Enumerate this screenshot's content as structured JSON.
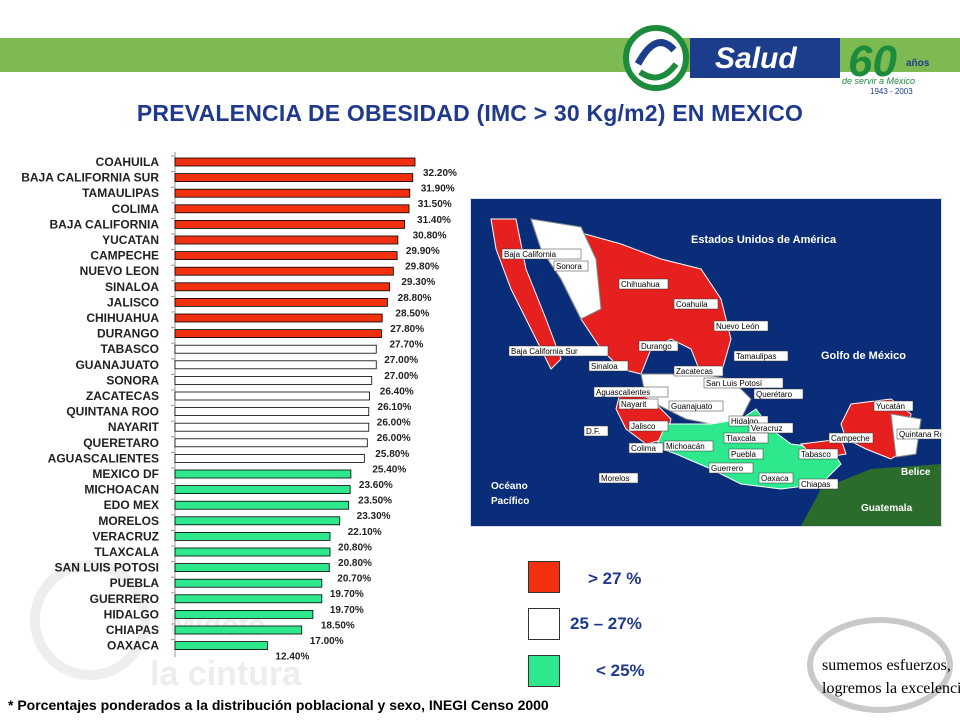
{
  "header": {
    "logo_word": "Salud",
    "logo_years": "60",
    "logo_anos": "años",
    "logo_tagline": "de servir a México",
    "logo_range": "1943 - 2003"
  },
  "title": "PREVALENCIA DE OBESIDAD (IMC > 30 Kg/m2) EN MEXICO",
  "colors": {
    "high": "#f0300e",
    "mid": "#ffffff",
    "low": "#2ee88e",
    "title": "#1f3a8c",
    "topbar": "#7dbb52",
    "ocean": "#0a2d7a"
  },
  "chart_data": {
    "type": "bar",
    "orientation": "horizontal",
    "categories": [
      "COAHUILA",
      "BAJA CALIFORNIA SUR",
      "TAMAULIPAS",
      "COLIMA",
      "BAJA CALIFORNIA",
      "YUCATAN",
      "CAMPECHE",
      "NUEVO LEON",
      "SINALOA",
      "JALISCO",
      "CHIHUAHUA",
      "DURANGO",
      "TABASCO",
      "GUANAJUATO",
      "SONORA",
      "ZACATECAS",
      "QUINTANA ROO",
      "NAYARIT",
      "QUERETARO",
      "AGUASCALIENTES",
      "MEXICO DF",
      "MICHOACAN",
      "EDO MEX",
      "MORELOS",
      "VERACRUZ",
      "TLAXCALA",
      "SAN LUIS POTOSI",
      "PUEBLA",
      "GUERRERO",
      "HIDALGO",
      "CHIAPAS",
      "OAXACA"
    ],
    "values": [
      32.2,
      31.9,
      31.5,
      31.4,
      30.8,
      29.9,
      29.8,
      29.3,
      28.8,
      28.5,
      27.8,
      27.7,
      27.0,
      27.0,
      26.4,
      26.1,
      26.0,
      26.0,
      25.8,
      25.4,
      23.6,
      23.5,
      23.3,
      22.1,
      20.8,
      20.8,
      20.7,
      19.7,
      19.7,
      18.5,
      17.0,
      12.4
    ],
    "labels": [
      "32.20%",
      "31.90%",
      "31.50%",
      "31.40%",
      "30.80%",
      "29.90%",
      "29.80%",
      "29.30%",
      "28.80%",
      "28.50%",
      "27.80%",
      "27.70%",
      "27.00%",
      "27.00%",
      "26.40%",
      "26.10%",
      "26.00%",
      "26.00%",
      "25.80%",
      "25.40%",
      "23.60%",
      "23.50%",
      "23.30%",
      "22.10%",
      "20.80%",
      "20.80%",
      "20.70%",
      "19.70%",
      "19.70%",
      "18.50%",
      "17.00%",
      "12.40%"
    ],
    "value_max": 32.2
  },
  "map": {
    "usa": "Estados Unidos de América",
    "gulf": "Golfo de México",
    "ocean1": "Océano",
    "ocean2": "Pacífico",
    "belize": "Belice",
    "guatemala": "Guatemala",
    "states": [
      "Baja California",
      "Sonora",
      "Chihuahua",
      "Coahuila",
      "Nuevo León",
      "Tamaulipas",
      "Baja California Sur",
      "Sinaloa",
      "Durango",
      "Zacatecas",
      "San Luis Potosí",
      "Aguascalientes",
      "Nayarit",
      "Guanajuato",
      "Querétaro",
      "D.F.",
      "Jalisco",
      "Hidalgo",
      "Veracruz",
      "Tlaxcala",
      "Colima",
      "Michoacán",
      "Puebla",
      "Yucatán",
      "Quintana Roo",
      "Campeche",
      "Tabasco",
      "Guerrero",
      "Oaxaca",
      "Chiapas",
      "Morelos"
    ]
  },
  "legend": [
    {
      "label": "> 27 %",
      "color": "#f0300e"
    },
    {
      "label": "25 – 27%",
      "color": "#ffffff"
    },
    {
      "label": "< 25%",
      "color": "#2ee88e"
    }
  ],
  "footnote": "* Porcentajes ponderados a la distribución poblacional y sexo, INEGI Censo 2000",
  "slogan": {
    "line1": "sumemos esfuerzos,",
    "line2": "logremos la excelencia..."
  },
  "watermark": {
    "line1": "Midete",
    "line2": "la cintura"
  }
}
